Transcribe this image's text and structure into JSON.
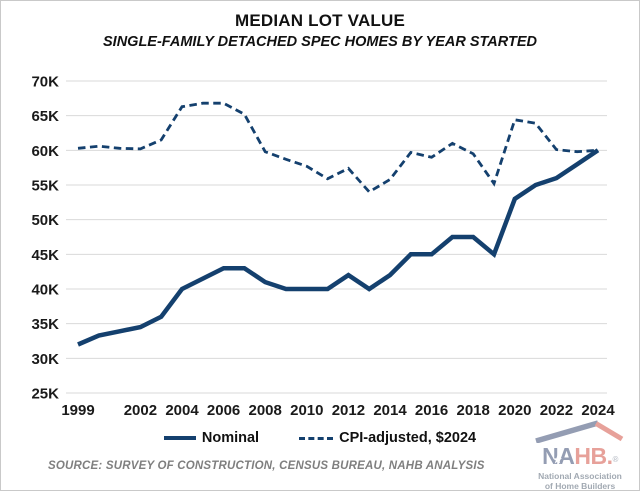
{
  "header": {
    "title": "MEDIAN LOT VALUE",
    "subtitle": "SINGLE-FAMILY DETACHED SPEC HOMES BY YEAR STARTED"
  },
  "legend": [
    {
      "label": "Nominal",
      "style": "solid"
    },
    {
      "label": "CPI-adjusted, $2024",
      "style": "dashed"
    }
  ],
  "footer": {
    "source": "SOURCE: SURVEY OF CONSTRUCTION, CENSUS BUREAU, NAHB ANALYSIS"
  },
  "logo": {
    "name_part1": "NA",
    "name_part2": "HB",
    "period": ".",
    "registered": "®",
    "star": "★",
    "tagline_line1": "National Association",
    "tagline_line2": "of Home Builders"
  },
  "colors": {
    "line": "#14406e",
    "grid": "#d9d9d9",
    "text": "#1a1a1a",
    "source_text": "#7f7f7f",
    "logo_blue": "#8b95ad",
    "logo_red": "#e59a92",
    "logo_gray": "#9aa2ac"
  },
  "chart_data": {
    "type": "line",
    "title": "MEDIAN LOT VALUE",
    "subtitle": "SINGLE-FAMILY DETACHED SPEC HOMES BY YEAR STARTED",
    "units": "thousands of dollars",
    "x": [
      1999,
      2000,
      2001,
      2002,
      2003,
      2004,
      2005,
      2006,
      2007,
      2008,
      2009,
      2010,
      2011,
      2012,
      2013,
      2014,
      2015,
      2016,
      2017,
      2018,
      2019,
      2020,
      2021,
      2022,
      2023,
      2024
    ],
    "xticks": [
      1999,
      2002,
      2004,
      2006,
      2008,
      2010,
      2012,
      2014,
      2016,
      2018,
      2020,
      2022,
      2024
    ],
    "yticks": [
      "70K",
      "65K",
      "60K",
      "55K",
      "50K",
      "45K",
      "40K",
      "35K",
      "30K",
      "25K"
    ],
    "ylim": [
      25,
      70
    ],
    "grid": "horizontal",
    "legend_position": "bottom",
    "series": [
      {
        "name": "Nominal",
        "style": "solid",
        "values": [
          32,
          33.3,
          33.9,
          34.5,
          36,
          40,
          41.5,
          43,
          43,
          41,
          40,
          40,
          40,
          42,
          40,
          42,
          45,
          45,
          47.5,
          47.5,
          45,
          53,
          55,
          56,
          58,
          60
        ]
      },
      {
        "name": "CPI-adjusted, $2024",
        "style": "dashed",
        "values": [
          60.3,
          60.6,
          60.3,
          60.2,
          61.5,
          66.3,
          66.8,
          66.8,
          65.2,
          59.8,
          58.7,
          57.7,
          55.9,
          57.4,
          54,
          55.8,
          59.7,
          59,
          61,
          59.5,
          55.2,
          64.4,
          63.9,
          60.1,
          59.8,
          60
        ]
      }
    ]
  }
}
